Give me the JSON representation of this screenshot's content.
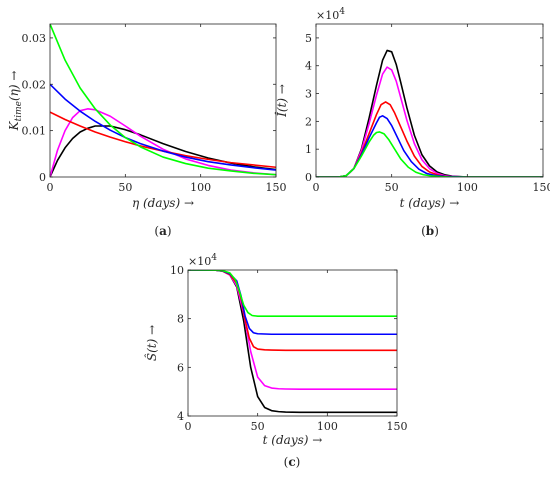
{
  "figure": {
    "curve_colors": [
      "#000000",
      "#ff00ff",
      "#ff0000",
      "#0000ff",
      "#00ff00"
    ]
  },
  "chart_data": [
    {
      "id": "a",
      "type": "line",
      "caption": "(a)",
      "xlabel": "η (days) →",
      "ylabel": "K_time(η) →",
      "xlim": [
        0,
        150
      ],
      "ylim": [
        0,
        0.033
      ],
      "xticks": [
        0,
        50,
        100,
        150
      ],
      "yticks": [
        0,
        0.01,
        0.02,
        0.03
      ],
      "ytick_labels": [
        "0",
        "0.01",
        "0.02",
        "0.03"
      ],
      "exponent_label": "",
      "grid": false,
      "series": [
        {
          "color": "#000000",
          "x": [
            0,
            5,
            10,
            15,
            20,
            25,
            30,
            40,
            50,
            60,
            75,
            90,
            105,
            120,
            135,
            150
          ],
          "y": [
            0,
            0.0036,
            0.0063,
            0.0083,
            0.0097,
            0.0105,
            0.011,
            0.011,
            0.0102,
            0.0091,
            0.0072,
            0.0055,
            0.0041,
            0.003,
            0.0022,
            0.0016
          ]
        },
        {
          "color": "#ff00ff",
          "x": [
            0,
            5,
            10,
            15,
            20,
            25,
            30,
            40,
            50,
            60,
            75,
            90,
            105,
            120,
            135,
            150
          ],
          "y": [
            0,
            0.0058,
            0.01,
            0.0128,
            0.0143,
            0.0147,
            0.0145,
            0.0131,
            0.011,
            0.0088,
            0.006,
            0.0039,
            0.0025,
            0.0015,
            0.0009,
            0.0005
          ]
        },
        {
          "color": "#ff0000",
          "x": [
            0,
            10,
            20,
            30,
            40,
            50,
            60,
            75,
            90,
            105,
            120,
            135,
            150
          ],
          "y": [
            0.014,
            0.0124,
            0.011,
            0.0097,
            0.0086,
            0.0076,
            0.0067,
            0.0056,
            0.0046,
            0.0038,
            0.0031,
            0.0026,
            0.0021
          ]
        },
        {
          "color": "#0000ff",
          "x": [
            0,
            10,
            20,
            30,
            40,
            50,
            60,
            75,
            90,
            105,
            120,
            135,
            150
          ],
          "y": [
            0.02,
            0.0168,
            0.0142,
            0.012,
            0.0101,
            0.0085,
            0.0072,
            0.0056,
            0.0043,
            0.0033,
            0.0026,
            0.002,
            0.0015
          ]
        },
        {
          "color": "#00ff00",
          "x": [
            0,
            10,
            20,
            30,
            40,
            50,
            60,
            75,
            90,
            105,
            120,
            135,
            150
          ],
          "y": [
            0.033,
            0.0252,
            0.0192,
            0.0147,
            0.0112,
            0.0085,
            0.0065,
            0.0043,
            0.0029,
            0.0019,
            0.0013,
            0.0008,
            0.0005
          ]
        }
      ]
    },
    {
      "id": "b",
      "type": "line",
      "caption": "(b)",
      "xlabel": "t (days) →",
      "ylabel": "Î(t) →",
      "xlim": [
        0,
        150
      ],
      "ylim": [
        0,
        5.5
      ],
      "xticks": [
        0,
        50,
        100,
        150
      ],
      "yticks": [
        0,
        1,
        2,
        3,
        4,
        5
      ],
      "ytick_labels": [
        "0",
        "1",
        "2",
        "3",
        "4",
        "5"
      ],
      "exponent_label": "×10",
      "exponent_power": "4",
      "grid": false,
      "series": [
        {
          "color": "#000000",
          "x": [
            0,
            15,
            20,
            25,
            30,
            35,
            40,
            44,
            47,
            50,
            53,
            56,
            60,
            65,
            70,
            75,
            80,
            85,
            90,
            100,
            150
          ],
          "y": [
            0,
            0,
            0.05,
            0.3,
            1.0,
            2.1,
            3.3,
            4.2,
            4.55,
            4.5,
            4.05,
            3.4,
            2.5,
            1.5,
            0.8,
            0.4,
            0.18,
            0.08,
            0.03,
            0,
            0
          ]
        },
        {
          "color": "#ff00ff",
          "x": [
            0,
            15,
            20,
            25,
            30,
            35,
            40,
            44,
            47,
            50,
            53,
            56,
            60,
            65,
            70,
            75,
            80,
            85,
            90,
            100,
            150
          ],
          "y": [
            0,
            0,
            0.05,
            0.3,
            0.95,
            1.9,
            2.95,
            3.7,
            3.95,
            3.85,
            3.45,
            2.85,
            2.05,
            1.2,
            0.62,
            0.3,
            0.13,
            0.05,
            0.02,
            0,
            0
          ]
        },
        {
          "color": "#ff0000",
          "x": [
            0,
            15,
            20,
            25,
            30,
            35,
            40,
            43,
            46,
            49,
            52,
            56,
            60,
            65,
            70,
            75,
            80,
            85,
            90,
            100,
            150
          ],
          "y": [
            0,
            0,
            0.05,
            0.3,
            0.85,
            1.55,
            2.25,
            2.6,
            2.7,
            2.6,
            2.3,
            1.8,
            1.3,
            0.75,
            0.38,
            0.18,
            0.08,
            0.03,
            0.01,
            0,
            0
          ]
        },
        {
          "color": "#0000ff",
          "x": [
            0,
            15,
            20,
            25,
            30,
            35,
            40,
            42,
            44,
            47,
            50,
            54,
            58,
            63,
            68,
            73,
            78,
            85,
            90,
            100,
            150
          ],
          "y": [
            0,
            0,
            0.05,
            0.3,
            0.8,
            1.4,
            1.95,
            2.15,
            2.2,
            2.1,
            1.85,
            1.4,
            0.95,
            0.55,
            0.28,
            0.13,
            0.06,
            0.02,
            0.01,
            0,
            0
          ]
        },
        {
          "color": "#00ff00",
          "x": [
            0,
            15,
            20,
            25,
            30,
            35,
            38,
            40,
            42,
            45,
            48,
            52,
            56,
            61,
            66,
            71,
            76,
            83,
            90,
            100,
            150
          ],
          "y": [
            0,
            0,
            0.05,
            0.3,
            0.75,
            1.25,
            1.5,
            1.6,
            1.62,
            1.55,
            1.35,
            1.0,
            0.65,
            0.35,
            0.17,
            0.08,
            0.04,
            0.01,
            0,
            0,
            0
          ]
        }
      ]
    },
    {
      "id": "c",
      "type": "line",
      "caption": "(c)",
      "xlabel": "t (days) →",
      "ylabel": "Ŝ(t) →",
      "xlim": [
        0,
        150
      ],
      "ylim": [
        4,
        10
      ],
      "xticks": [
        0,
        50,
        100,
        150
      ],
      "yticks": [
        4,
        6,
        8,
        10
      ],
      "ytick_labels": [
        "4",
        "6",
        "8",
        "10"
      ],
      "exponent_label": "×10",
      "exponent_power": "4",
      "grid": false,
      "series": [
        {
          "color": "#000000",
          "x": [
            0,
            20,
            25,
            30,
            35,
            40,
            45,
            50,
            55,
            60,
            65,
            70,
            80,
            150
          ],
          "y": [
            10,
            9.99,
            9.95,
            9.8,
            9.3,
            7.9,
            6.0,
            4.8,
            4.35,
            4.22,
            4.18,
            4.16,
            4.15,
            4.15
          ]
        },
        {
          "color": "#ff00ff",
          "x": [
            0,
            20,
            25,
            30,
            35,
            40,
            45,
            50,
            55,
            60,
            65,
            70,
            80,
            150
          ],
          "y": [
            10,
            9.99,
            9.95,
            9.8,
            9.35,
            8.2,
            6.65,
            5.6,
            5.25,
            5.15,
            5.12,
            5.11,
            5.1,
            5.1
          ]
        },
        {
          "color": "#ff0000",
          "x": [
            0,
            20,
            25,
            30,
            35,
            38,
            41,
            44,
            47,
            50,
            55,
            60,
            70,
            150
          ],
          "y": [
            10,
            9.99,
            9.95,
            9.82,
            9.45,
            8.85,
            7.95,
            7.2,
            6.85,
            6.75,
            6.72,
            6.71,
            6.7,
            6.7
          ]
        },
        {
          "color": "#0000ff",
          "x": [
            0,
            20,
            25,
            30,
            35,
            38,
            41,
            44,
            47,
            50,
            55,
            60,
            70,
            150
          ],
          "y": [
            10,
            9.99,
            9.96,
            9.85,
            9.55,
            8.95,
            8.1,
            7.6,
            7.42,
            7.38,
            7.37,
            7.36,
            7.36,
            7.36
          ]
        },
        {
          "color": "#00ff00",
          "x": [
            0,
            20,
            25,
            30,
            34,
            37,
            40,
            43,
            46,
            50,
            55,
            60,
            70,
            150
          ],
          "y": [
            10,
            9.99,
            9.97,
            9.88,
            9.6,
            9.1,
            8.55,
            8.25,
            8.13,
            8.1,
            8.1,
            8.1,
            8.1,
            8.1
          ]
        }
      ]
    }
  ]
}
